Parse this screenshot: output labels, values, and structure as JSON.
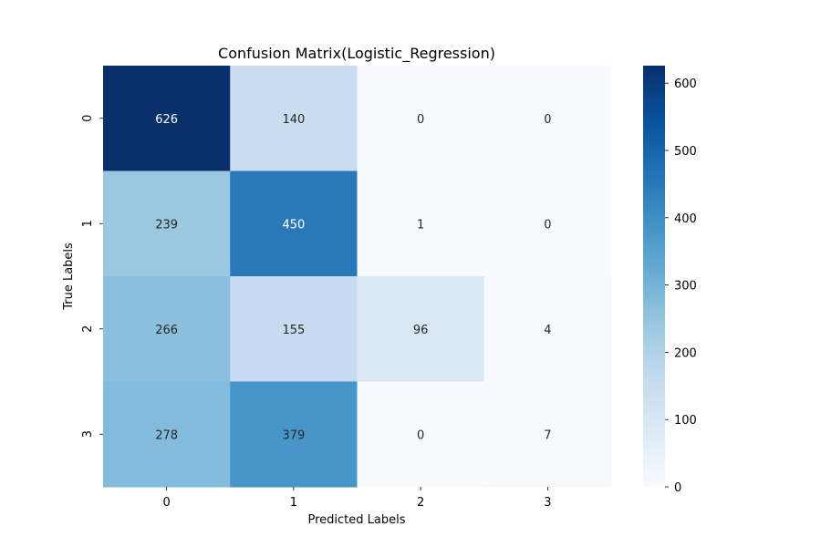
{
  "chart_data": {
    "type": "heatmap",
    "title": "Confusion Matrix(Logistic_Regression)",
    "xlabel": "Predicted Labels",
    "ylabel": "True Labels",
    "x_categories": [
      "0",
      "1",
      "2",
      "3"
    ],
    "y_categories": [
      "0",
      "1",
      "2",
      "3"
    ],
    "matrix": [
      [
        626,
        140,
        0,
        0
      ],
      [
        239,
        450,
        1,
        0
      ],
      [
        266,
        155,
        96,
        4
      ],
      [
        278,
        379,
        0,
        7
      ]
    ],
    "colormap": "Blues",
    "vmin": 0,
    "vmax": 626,
    "colorbar_ticks": [
      0,
      100,
      200,
      300,
      400,
      500,
      600
    ]
  }
}
